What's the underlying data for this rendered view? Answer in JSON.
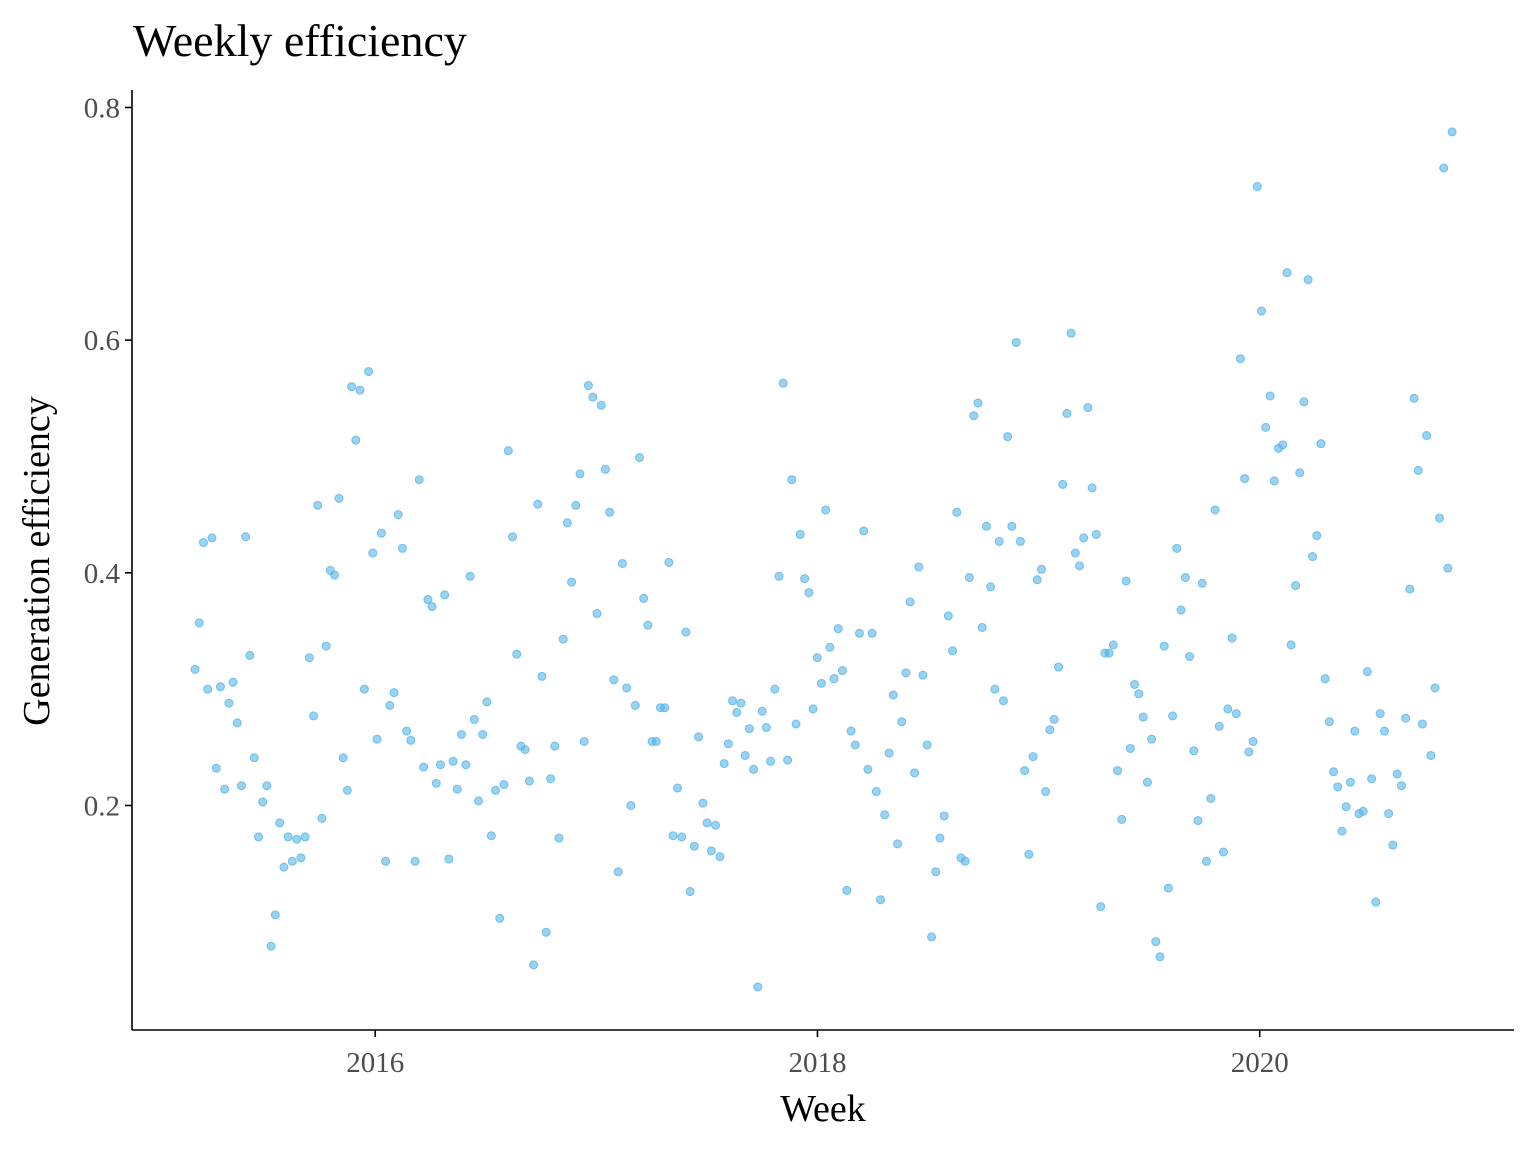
{
  "chart_data": {
    "type": "scatter",
    "title": "Weekly efficiency",
    "x_label": "Week",
    "y_label": "Generation efficiency",
    "color": "#56B4E9",
    "xlim": [
      2014.9,
      2021.15
    ],
    "xticks": [
      2016,
      2018,
      2020
    ],
    "ylim": [
      0.007,
      0.815
    ],
    "yticks": [
      0.2,
      0.4,
      0.6,
      0.8
    ],
    "x": [
      2015.185,
      2015.204,
      2015.223,
      2015.242,
      2015.262,
      2015.281,
      2015.3,
      2015.319,
      2015.338,
      2015.357,
      2015.376,
      2015.395,
      2015.414,
      2015.433,
      2015.453,
      2015.472,
      2015.491,
      2015.51,
      2015.529,
      2015.548,
      2015.568,
      2015.587,
      2015.606,
      2015.625,
      2015.645,
      2015.664,
      2015.683,
      2015.702,
      2015.721,
      2015.74,
      2015.759,
      2015.778,
      2015.797,
      2015.816,
      2015.836,
      2015.855,
      2015.874,
      2015.893,
      2015.912,
      2015.931,
      2015.951,
      2015.97,
      2015.989,
      2016.008,
      2016.028,
      2016.047,
      2016.066,
      2016.085,
      2016.104,
      2016.123,
      2016.142,
      2016.161,
      2016.18,
      2016.199,
      2016.219,
      2016.238,
      2016.257,
      2016.276,
      2016.295,
      2016.314,
      2016.333,
      2016.352,
      2016.371,
      2016.39,
      2016.41,
      2016.429,
      2016.448,
      2016.467,
      2016.486,
      2016.505,
      2016.525,
      2016.544,
      2016.563,
      2016.582,
      2016.602,
      2016.621,
      2016.64,
      2016.659,
      2016.678,
      2016.697,
      2016.716,
      2016.735,
      2016.754,
      2016.773,
      2016.793,
      2016.812,
      2016.831,
      2016.85,
      2016.869,
      2016.888,
      2016.907,
      2016.926,
      2016.945,
      2016.964,
      2016.984,
      2017.003,
      2017.022,
      2017.041,
      2017.06,
      2017.079,
      2017.099,
      2017.118,
      2017.137,
      2017.156,
      2017.176,
      2017.195,
      2017.214,
      2017.233,
      2017.252,
      2017.271,
      2017.29,
      2017.309,
      2017.328,
      2017.347,
      2017.367,
      2017.386,
      2017.405,
      2017.424,
      2017.443,
      2017.462,
      2017.482,
      2017.501,
      2017.52,
      2017.539,
      2017.559,
      2017.578,
      2017.597,
      2017.616,
      2017.635,
      2017.654,
      2017.673,
      2017.692,
      2017.711,
      2017.73,
      2017.75,
      2017.769,
      2017.788,
      2017.807,
      2017.826,
      2017.845,
      2017.865,
      2017.884,
      2017.903,
      2017.922,
      2017.942,
      2017.961,
      2017.98,
      2017.999,
      2018.018,
      2018.037,
      2018.056,
      2018.075,
      2018.094,
      2018.113,
      2018.133,
      2018.152,
      2018.171,
      2018.19,
      2018.209,
      2018.228,
      2018.247,
      2018.266,
      2018.285,
      2018.304,
      2018.324,
      2018.343,
      2018.362,
      2018.381,
      2018.4,
      2018.419,
      2018.439,
      2018.458,
      2018.477,
      2018.496,
      2018.516,
      2018.535,
      2018.554,
      2018.573,
      2018.592,
      2018.611,
      2018.63,
      2018.649,
      2018.668,
      2018.687,
      2018.707,
      2018.726,
      2018.745,
      2018.764,
      2018.783,
      2018.802,
      2018.822,
      2018.841,
      2018.86,
      2018.879,
      2018.899,
      2018.918,
      2018.937,
      2018.956,
      2018.975,
      2018.994,
      2019.013,
      2019.032,
      2019.051,
      2019.07,
      2019.09,
      2019.109,
      2019.128,
      2019.147,
      2019.166,
      2019.185,
      2019.204,
      2019.223,
      2019.242,
      2019.261,
      2019.281,
      2019.3,
      2019.319,
      2019.338,
      2019.357,
      2019.376,
      2019.396,
      2019.415,
      2019.434,
      2019.453,
      2019.473,
      2019.492,
      2019.511,
      2019.53,
      2019.549,
      2019.568,
      2019.587,
      2019.606,
      2019.625,
      2019.644,
      2019.664,
      2019.683,
      2019.702,
      2019.721,
      2019.74,
      2019.759,
      2019.779,
      2019.798,
      2019.817,
      2019.836,
      2019.856,
      2019.875,
      2019.894,
      2019.913,
      2019.932,
      2019.951,
      2019.97,
      2019.989,
      2020.008,
      2020.027,
      2020.047,
      2020.066,
      2020.085,
      2020.104,
      2020.123,
      2020.142,
      2020.162,
      2020.181,
      2020.2,
      2020.219,
      2020.239,
      2020.258,
      2020.277,
      2020.296,
      2020.315,
      2020.334,
      2020.353,
      2020.372,
      2020.391,
      2020.41,
      2020.43,
      2020.449,
      2020.468,
      2020.487,
      2020.506,
      2020.525,
      2020.545,
      2020.564,
      2020.583,
      2020.602,
      2020.622,
      2020.641,
      2020.66,
      2020.679,
      2020.698,
      2020.717,
      2020.736,
      2020.755,
      2020.774,
      2020.793,
      2020.813,
      2020.832,
      2020.851,
      2020.87
    ],
    "values": [
      0.317,
      0.357,
      0.426,
      0.3,
      0.43,
      0.232,
      0.302,
      0.214,
      0.288,
      0.306,
      0.271,
      0.217,
      0.431,
      0.329,
      0.241,
      0.173,
      0.203,
      0.217,
      0.079,
      0.106,
      0.185,
      0.147,
      0.173,
      0.152,
      0.171,
      0.155,
      0.173,
      0.327,
      0.277,
      0.458,
      0.189,
      0.337,
      0.402,
      0.398,
      0.464,
      0.241,
      0.213,
      0.56,
      0.514,
      0.557,
      0.3,
      0.573,
      0.417,
      0.257,
      0.434,
      0.152,
      0.286,
      0.297,
      0.45,
      0.421,
      0.264,
      0.256,
      0.152,
      0.48,
      0.233,
      0.377,
      0.371,
      0.219,
      0.235,
      0.381,
      0.154,
      0.238,
      0.214,
      0.261,
      0.235,
      0.397,
      0.274,
      0.204,
      0.261,
      0.289,
      0.174,
      0.213,
      0.103,
      0.218,
      0.505,
      0.431,
      0.33,
      0.251,
      0.248,
      0.221,
      0.063,
      0.459,
      0.311,
      0.091,
      0.223,
      0.251,
      0.172,
      0.343,
      0.443,
      0.392,
      0.458,
      0.485,
      0.255,
      0.561,
      0.551,
      0.365,
      0.544,
      0.489,
      0.452,
      0.308,
      0.143,
      0.408,
      0.301,
      0.2,
      0.286,
      0.499,
      0.378,
      0.355,
      0.255,
      0.255,
      0.284,
      0.284,
      0.409,
      0.174,
      0.215,
      0.173,
      0.349,
      0.126,
      0.165,
      0.259,
      0.202,
      0.185,
      0.161,
      0.183,
      0.156,
      0.236,
      0.253,
      0.29,
      0.28,
      0.288,
      0.243,
      0.266,
      0.231,
      0.044,
      0.281,
      0.267,
      0.238,
      0.3,
      0.397,
      0.563,
      0.239,
      0.48,
      0.27,
      0.433,
      0.395,
      0.383,
      0.283,
      0.327,
      0.305,
      0.454,
      0.336,
      0.309,
      0.352,
      0.316,
      0.127,
      0.264,
      0.252,
      0.348,
      0.436,
      0.231,
      0.348,
      0.212,
      0.119,
      0.192,
      0.245,
      0.295,
      0.167,
      0.272,
      0.314,
      0.375,
      0.228,
      0.405,
      0.312,
      0.252,
      0.087,
      0.143,
      0.172,
      0.191,
      0.363,
      0.333,
      0.452,
      0.155,
      0.152,
      0.396,
      0.535,
      0.546,
      0.353,
      0.44,
      0.388,
      0.3,
      0.427,
      0.29,
      0.517,
      0.44,
      0.598,
      0.427,
      0.23,
      0.158,
      0.242,
      0.394,
      0.403,
      0.212,
      0.265,
      0.274,
      0.319,
      0.476,
      0.537,
      0.606,
      0.417,
      0.406,
      0.43,
      0.542,
      0.473,
      0.433,
      0.113,
      0.331,
      0.331,
      0.338,
      0.23,
      0.188,
      0.393,
      0.249,
      0.304,
      0.296,
      0.276,
      0.22,
      0.257,
      0.083,
      0.07,
      0.337,
      0.129,
      0.277,
      0.421,
      0.368,
      0.396,
      0.328,
      0.247,
      0.187,
      0.391,
      0.152,
      0.206,
      0.454,
      0.268,
      0.16,
      0.283,
      0.344,
      0.279,
      0.584,
      0.481,
      0.246,
      0.255,
      0.732,
      0.625,
      0.525,
      0.552,
      0.479,
      0.507,
      0.51,
      0.658,
      0.338,
      0.389,
      0.486,
      0.547,
      0.652,
      0.414,
      0.432,
      0.511,
      0.309,
      0.272,
      0.229,
      0.216,
      0.178,
      0.199,
      0.22,
      0.264,
      0.193,
      0.195,
      0.315,
      0.223,
      0.117,
      0.279,
      0.264,
      0.193,
      0.166,
      0.227,
      0.217,
      0.275,
      0.386,
      0.55,
      0.488,
      0.27,
      0.518,
      0.243,
      0.301,
      0.447,
      0.748,
      0.404,
      0.779
    ]
  }
}
